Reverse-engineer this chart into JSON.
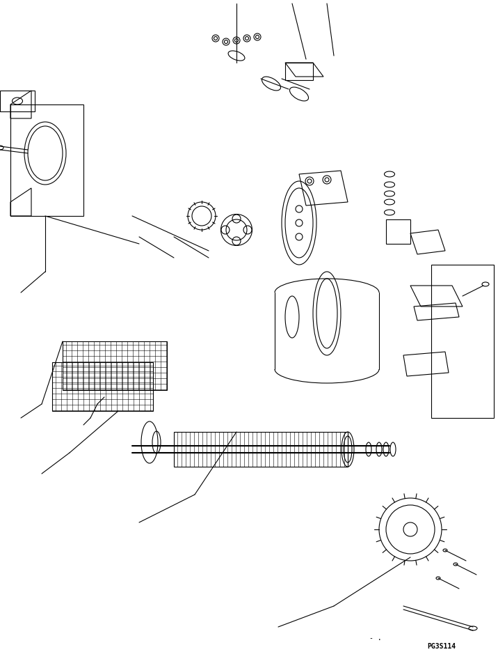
{
  "title": "PG3S114",
  "bg_color": "#ffffff",
  "line_color": "#000000",
  "fig_width": 7.16,
  "fig_height": 9.36,
  "dpi": 100,
  "label_bottom_right": "PG3S114",
  "label_bottom_dots": "- ."
}
